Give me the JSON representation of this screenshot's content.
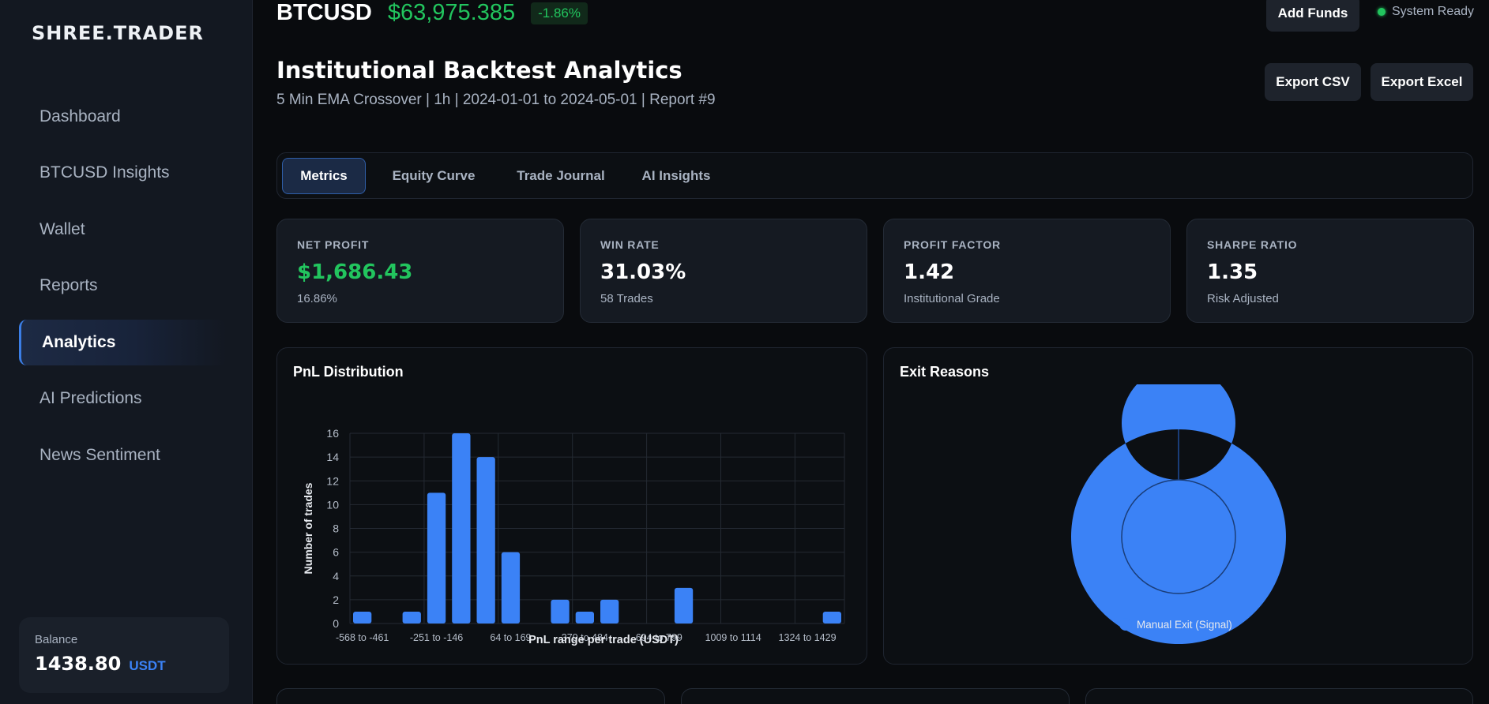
{
  "brand": "SHREE.TRADER",
  "sidebar": {
    "items": [
      {
        "label": "Dashboard"
      },
      {
        "label": "BTCUSD Insights"
      },
      {
        "label": "Wallet"
      },
      {
        "label": "Reports"
      },
      {
        "label": "Analytics"
      },
      {
        "label": "AI Predictions"
      },
      {
        "label": "News Sentiment"
      }
    ],
    "active_index": 4,
    "balance": {
      "label": "Balance",
      "value": "1438.80",
      "unit": "USDT"
    }
  },
  "header": {
    "symbol": "BTCUSD",
    "price": "$63,975.385",
    "change": "-1.86%",
    "add_funds": "Add Funds",
    "status": "System Ready"
  },
  "page": {
    "title": "Institutional Backtest Analytics",
    "subtitle": "5 Min EMA Crossover | 1h | 2024-01-01 to 2024-05-01 | Report #9",
    "export_csv": "Export CSV",
    "export_excel": "Export Excel"
  },
  "tabs": [
    {
      "label": "Metrics"
    },
    {
      "label": "Equity Curve"
    },
    {
      "label": "Trade Journal"
    },
    {
      "label": "AI Insights"
    }
  ],
  "metrics": [
    {
      "label": "NET PROFIT",
      "value": "$1,686.43",
      "sub": "16.86%"
    },
    {
      "label": "WIN RATE",
      "value": "31.03%",
      "sub": "58 Trades"
    },
    {
      "label": "PROFIT FACTOR",
      "value": "1.42",
      "sub": "Institutional Grade"
    },
    {
      "label": "SHARPE RATIO",
      "value": "1.35",
      "sub": "Risk Adjusted"
    }
  ],
  "colors": {
    "accent": "#3b82f6",
    "positive": "#22c55e",
    "background": "#090b0e",
    "sidebar": "#131821",
    "card": "#151a22"
  },
  "chart_data": [
    {
      "type": "bar",
      "title": "PnL Distribution",
      "xlabel": "PnL range per trade (USDT)",
      "ylabel": "Number of trades",
      "tick_labels": [
        "-568 to -461",
        "-251 to -146",
        "64 to 169",
        "379 to 484",
        "694 to 799",
        "1009 to 1114",
        "1324 to 1429"
      ],
      "bin_count": 20,
      "values": [
        1,
        0,
        1,
        11,
        16,
        14,
        6,
        0,
        2,
        1,
        2,
        0,
        0,
        3,
        0,
        0,
        0,
        0,
        0,
        1
      ],
      "ylim": [
        0,
        16
      ],
      "yticks": [
        0,
        2,
        4,
        6,
        8,
        10,
        12,
        14,
        16
      ],
      "grid": true,
      "color": "#3b82f6"
    },
    {
      "type": "pie",
      "variant": "doughnut",
      "title": "Exit Reasons",
      "slices": [
        {
          "label": "Manual Exit (Signal)",
          "value": 58,
          "color": "#3b82f6"
        }
      ],
      "legend": "bottom"
    }
  ]
}
